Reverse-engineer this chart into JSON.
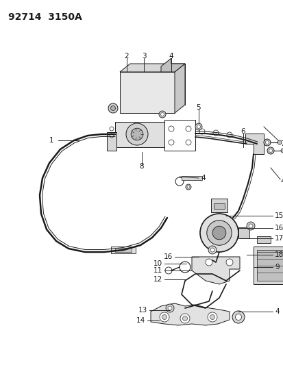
{
  "title": "92714  3150A",
  "bg_color": "#ffffff",
  "line_color": "#1a1a1a",
  "title_fontsize": 10,
  "label_fontsize": 7.5,
  "fig_width": 4.14,
  "fig_height": 5.33,
  "dpi": 100
}
